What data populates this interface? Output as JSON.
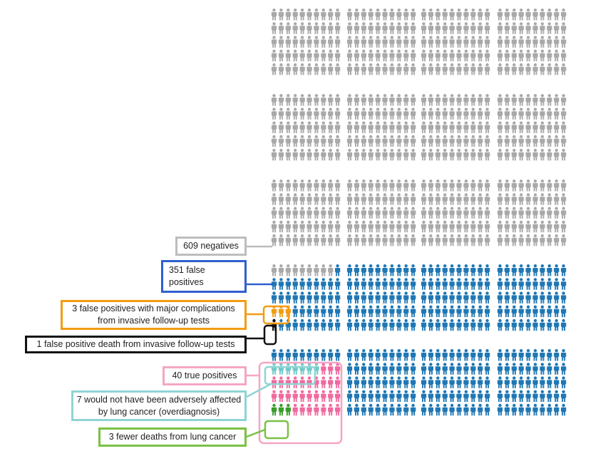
{
  "colors": {
    "negative": "#a9a9a9",
    "false_positive": "#1f77b4",
    "complication": "#f39c12",
    "fp_death": "#000000",
    "true_positive": "#f06a9f",
    "overdiagnosis": "#6fcac8",
    "fewer_deaths": "#3a9c2b",
    "box_negative": "#bdbdbd",
    "box_false_positive": "#2f5fd0",
    "box_complication": "#f39c12",
    "box_fp_death": "#111111",
    "box_true_positive": "#f4a6c4",
    "box_overdiagnosis": "#8fd4d4",
    "box_fewer_deaths": "#7ac143"
  },
  "labels": {
    "negatives": "609 negatives",
    "false_positives": "351 false positives",
    "complications": "3 false positives with major complications from invasive follow-up tests",
    "fp_death": "1 false positive death from invasive follow-up tests",
    "true_positives": "40 true positives",
    "overdiagnosis": "7 would not have been adversely affected by lung cancer (overdiagnosis)",
    "fewer_deaths": "3 fewer deaths from lung cancer"
  },
  "chart_data": {
    "type": "icon-array",
    "total": 1000,
    "groups": [
      {
        "name": "negatives",
        "count": 609
      },
      {
        "name": "false positives",
        "count": 351
      },
      {
        "name": "false positives with major complications from invasive follow-up tests",
        "count": 3
      },
      {
        "name": "false positive death from invasive follow-up tests",
        "count": 1
      },
      {
        "name": "true positives",
        "count": 40
      },
      {
        "name": "would not have been adversely affected by lung cancer (overdiagnosis)",
        "count": 7
      },
      {
        "name": "fewer deaths from lung cancer",
        "count": 3
      }
    ]
  }
}
